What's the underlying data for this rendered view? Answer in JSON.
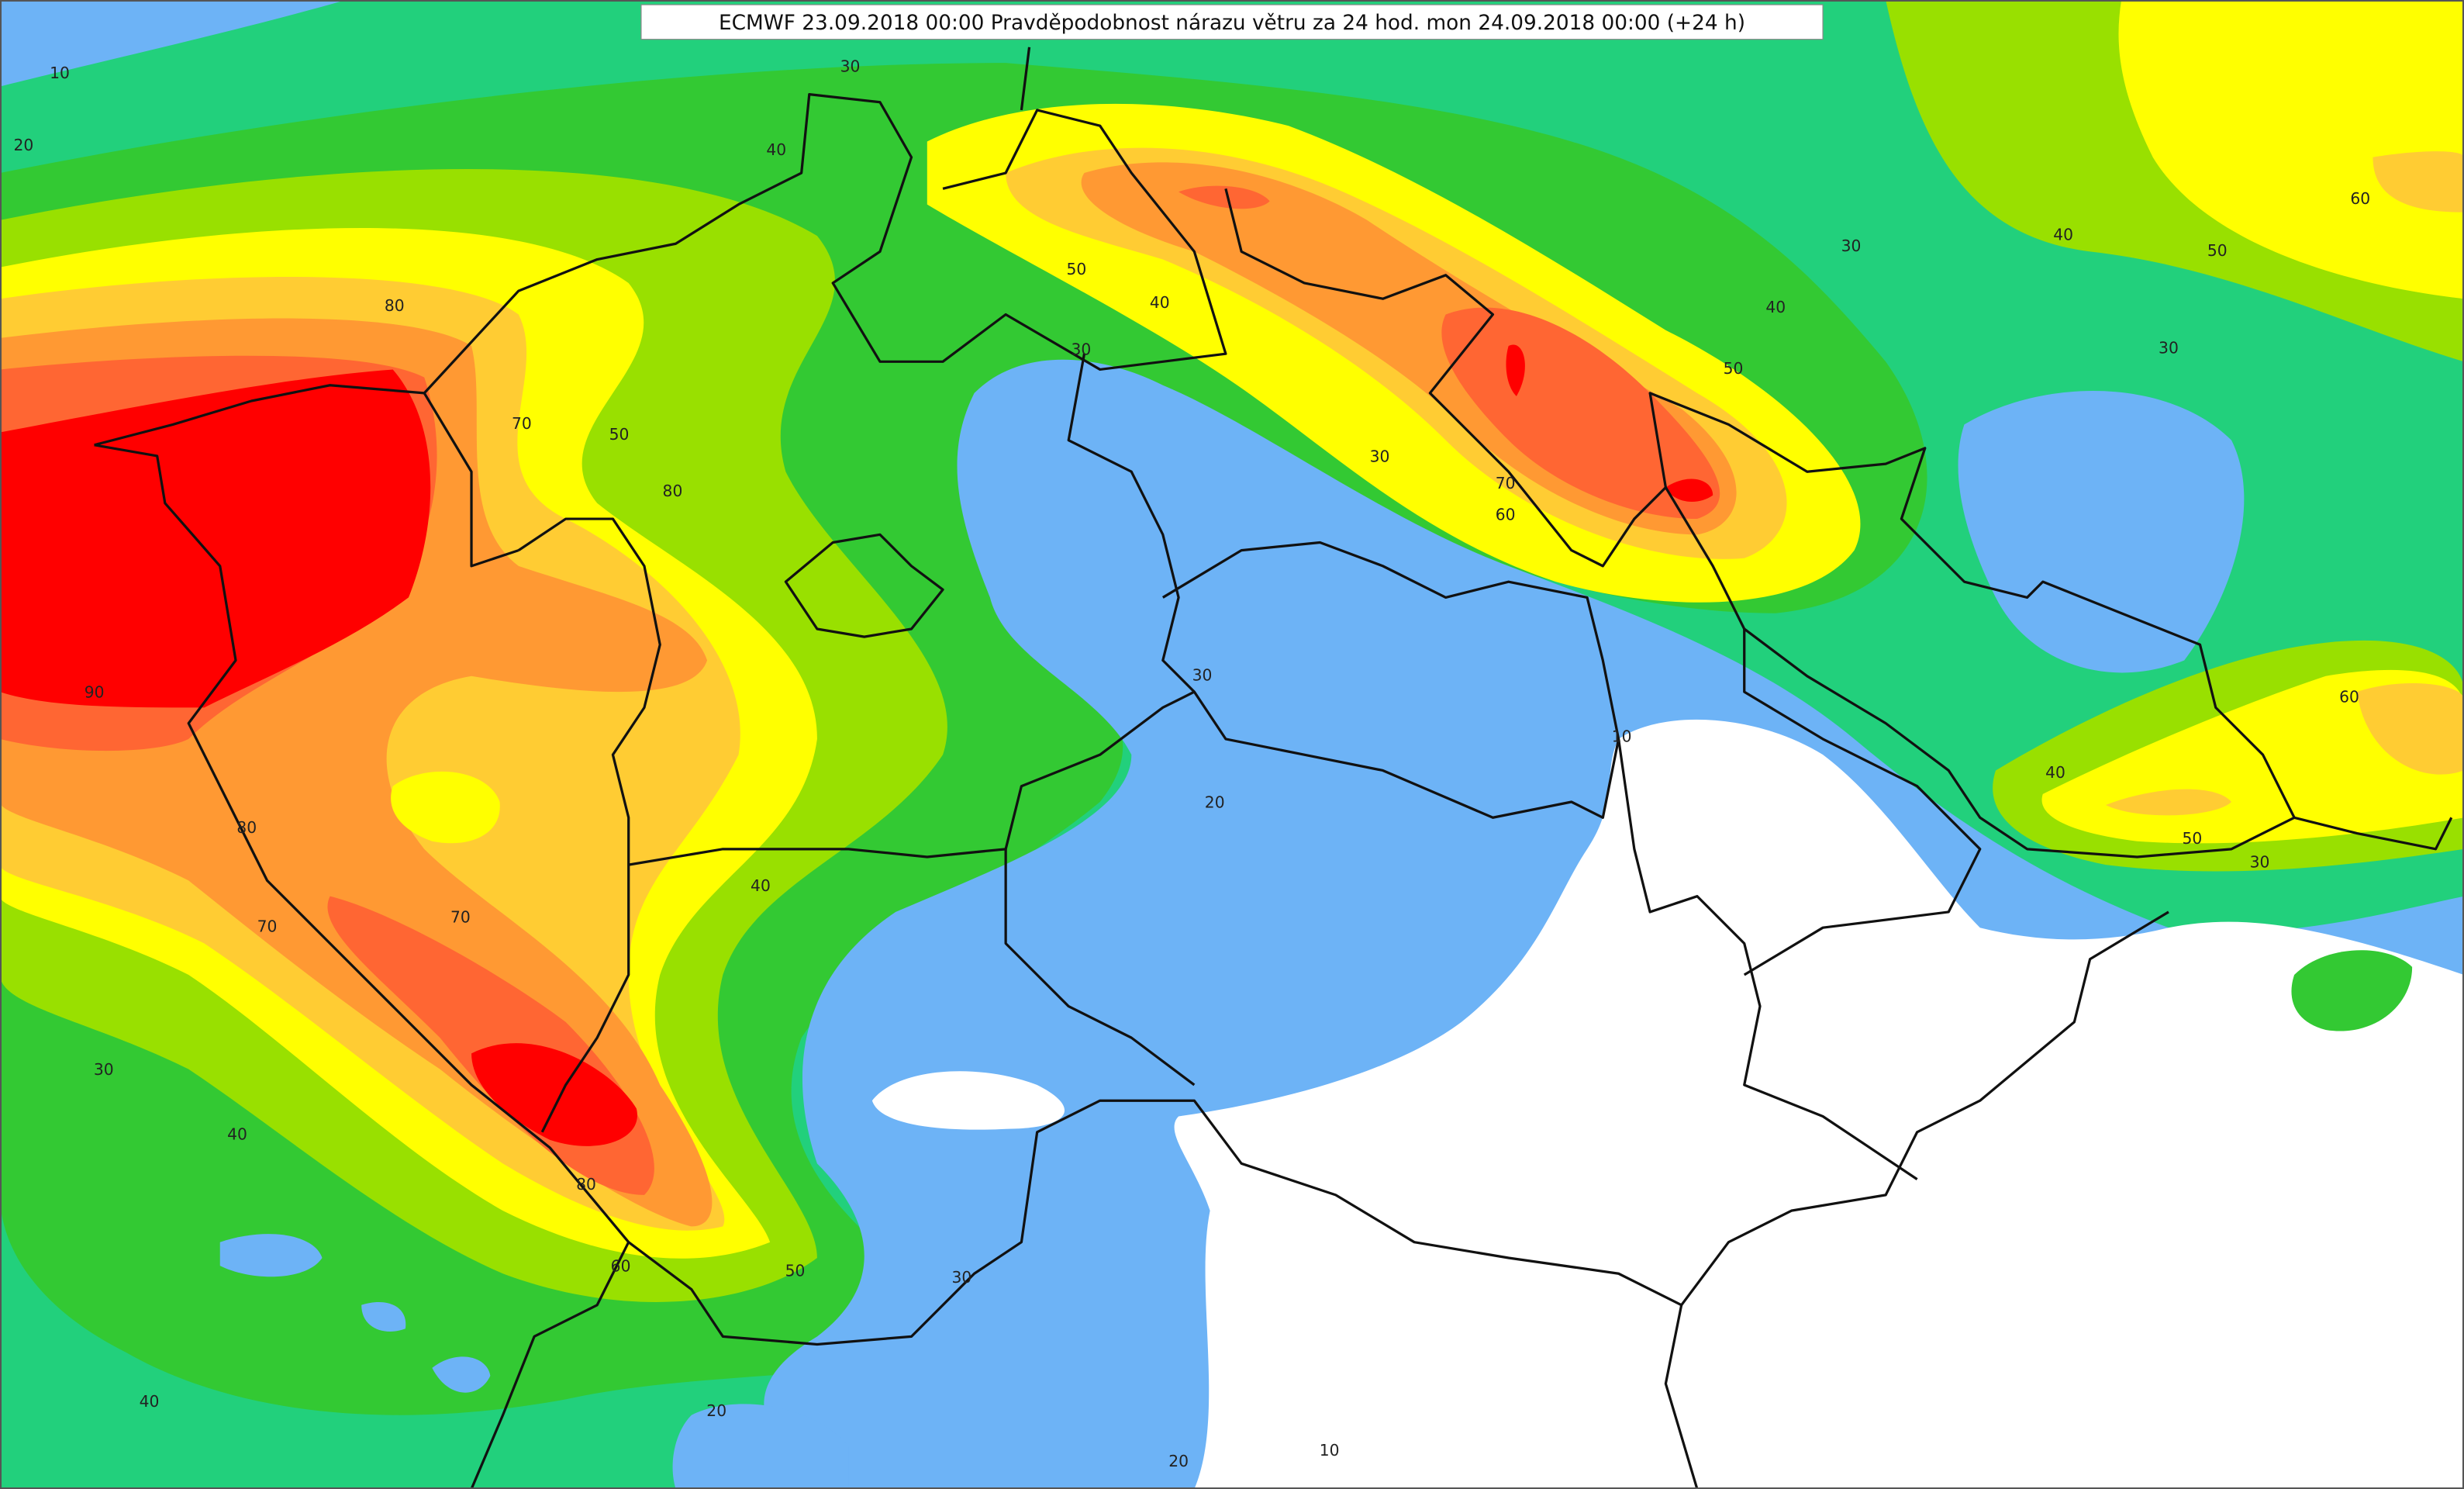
{
  "title": "ECMWF 23.09.2018 00:00 Pravděpodobnost nárazu větru za 24 hod. mon 24.09.2018 00:00 (+24 h)",
  "contour_labels": [
    10,
    20,
    30,
    40,
    80,
    70,
    50,
    80,
    90,
    80,
    70,
    70,
    40,
    30,
    40,
    80,
    60,
    50,
    30,
    40,
    20,
    20,
    10,
    20,
    30,
    30,
    70,
    60,
    50,
    40,
    30,
    50,
    40,
    30,
    40,
    50,
    60,
    30,
    60,
    40,
    50,
    30,
    10
  ]
}
